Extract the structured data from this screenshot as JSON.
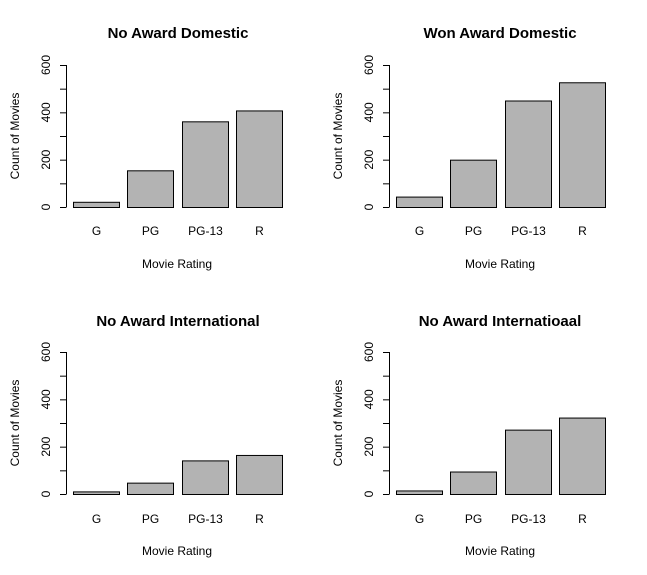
{
  "chart_data": [
    {
      "type": "bar",
      "title": "No Award Domestic",
      "xlabel": "Movie Rating",
      "ylabel": "Count of Movies",
      "categories": [
        "G",
        "PG",
        "PG-13",
        "R"
      ],
      "values": [
        22,
        155,
        362,
        408
      ],
      "ylim": [
        0,
        600
      ],
      "yticks": [
        0,
        200,
        400,
        600
      ],
      "ytick_minor": [
        100,
        300,
        500
      ],
      "bar_color": "#b3b3b3",
      "grid": false
    },
    {
      "type": "bar",
      "title": "Won Award Domestic",
      "xlabel": "Movie Rating",
      "ylabel": "Count of Movies",
      "categories": [
        "G",
        "PG",
        "PG-13",
        "R"
      ],
      "values": [
        44,
        200,
        450,
        527
      ],
      "ylim": [
        0,
        600
      ],
      "yticks": [
        0,
        200,
        400,
        600
      ],
      "ytick_minor": [
        100,
        300,
        500
      ],
      "bar_color": "#b3b3b3",
      "grid": false
    },
    {
      "type": "bar",
      "title": "No Award International",
      "xlabel": "Movie Rating",
      "ylabel": "Count of Movies",
      "categories": [
        "G",
        "PG",
        "PG-13",
        "R"
      ],
      "values": [
        11,
        48,
        142,
        165
      ],
      "ylim": [
        0,
        600
      ],
      "yticks": [
        0,
        200,
        400,
        600
      ],
      "ytick_minor": [
        100,
        300,
        500
      ],
      "bar_color": "#b3b3b3",
      "grid": false
    },
    {
      "type": "bar",
      "title": "No Award Internatioaal",
      "xlabel": "Movie Rating",
      "ylabel": "Count of Movies",
      "categories": [
        "G",
        "PG",
        "PG-13",
        "R"
      ],
      "values": [
        15,
        95,
        272,
        323
      ],
      "ylim": [
        0,
        600
      ],
      "yticks": [
        0,
        200,
        400,
        600
      ],
      "ytick_minor": [
        100,
        300,
        500
      ],
      "bar_color": "#b3b3b3",
      "grid": false
    }
  ]
}
